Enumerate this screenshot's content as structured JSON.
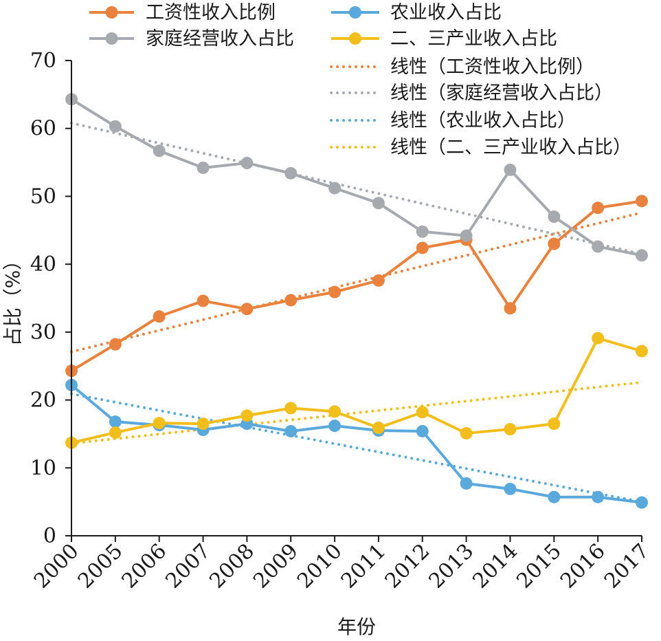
{
  "chart_data": {
    "type": "line",
    "title": "",
    "xlabel": "年份",
    "ylabel": "占比（%）",
    "ylim": [
      0,
      70
    ],
    "yticks": [
      0,
      10,
      20,
      30,
      40,
      50,
      60,
      70
    ],
    "categories": [
      "2000",
      "2005",
      "2006",
      "2007",
      "2008",
      "2009",
      "2010",
      "2011",
      "2012",
      "2013",
      "2014",
      "2015",
      "2016",
      "2017"
    ],
    "grid": false,
    "legend_position": "top",
    "series": [
      {
        "name": "工资性收入比例",
        "color": "#E8823E",
        "values": [
          24.3,
          28.2,
          32.3,
          34.6,
          33.4,
          34.7,
          35.9,
          37.6,
          42.4,
          43.6,
          33.5,
          43.0,
          48.3,
          49.3
        ],
        "trend": {
          "name": "线性（工资性收入比例）",
          "start": 27.1,
          "end": 47.6
        }
      },
      {
        "name": "农业收入占比",
        "color": "#5AA9DC",
        "values": [
          22.2,
          16.8,
          16.3,
          15.6,
          16.5,
          15.4,
          16.2,
          15.5,
          15.4,
          7.7,
          6.9,
          5.7,
          5.7,
          4.9
        ],
        "trend": {
          "name": "线性（农业收入占比）",
          "start": 20.9,
          "end": 5.0
        }
      },
      {
        "name": "家庭经营收入占比",
        "color": "#A6A9AE",
        "values": [
          64.3,
          60.3,
          56.7,
          54.2,
          54.9,
          53.4,
          51.2,
          49.0,
          44.8,
          44.2,
          53.9,
          47.0,
          42.6,
          41.3
        ],
        "trend": {
          "name": "线性（家庭经营收入占比）",
          "start": 60.8,
          "end": 41.5
        }
      },
      {
        "name": "二、三产业收入占比",
        "color": "#F2BE1C",
        "values": [
          13.7,
          15.2,
          16.6,
          16.5,
          17.7,
          18.8,
          18.3,
          15.9,
          18.2,
          15.1,
          15.7,
          16.5,
          29.1,
          27.2
        ],
        "trend": {
          "name": "线性（二、三产业收入占比）",
          "start": 13.6,
          "end": 22.6
        }
      }
    ]
  }
}
